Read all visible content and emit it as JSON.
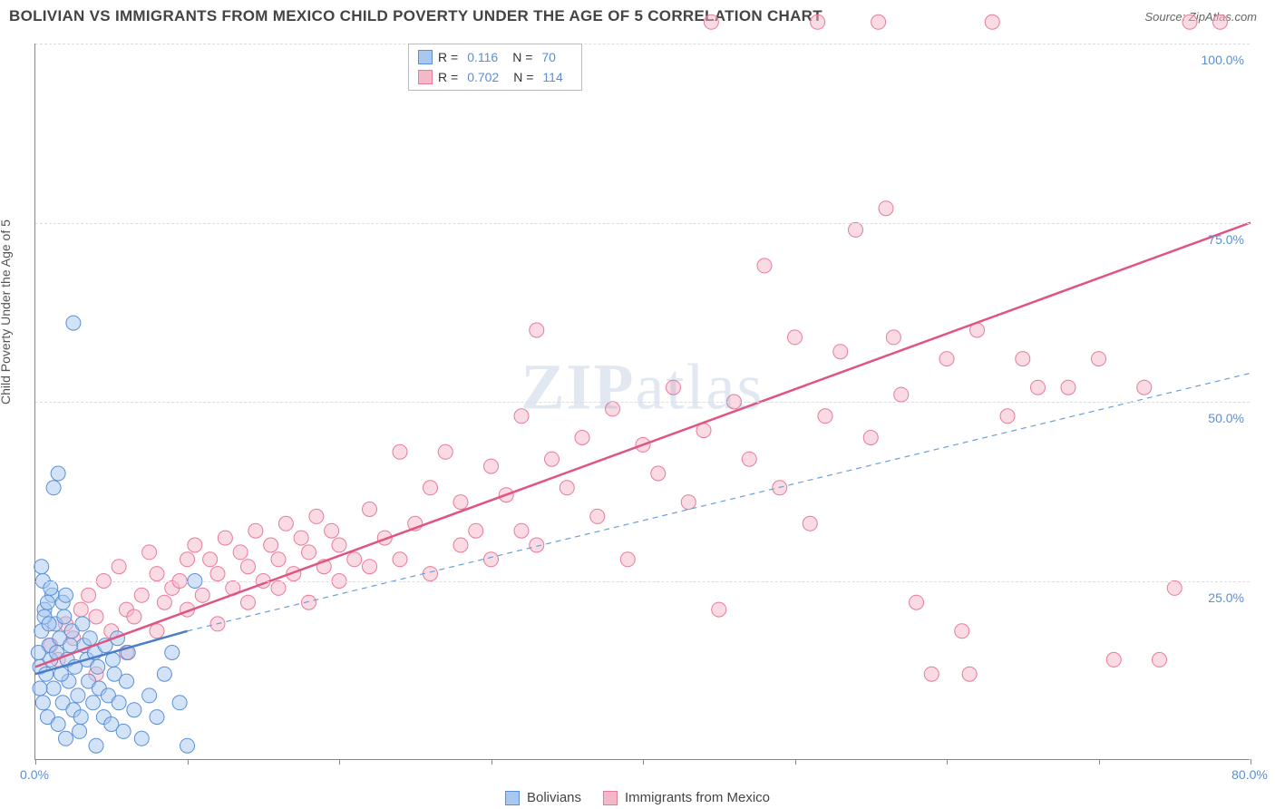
{
  "title": "BOLIVIAN VS IMMIGRANTS FROM MEXICO CHILD POVERTY UNDER THE AGE OF 5 CORRELATION CHART",
  "source": "Source: ZipAtlas.com",
  "ylabel": "Child Poverty Under the Age of 5",
  "watermark_bold": "ZIP",
  "watermark_rest": "atlas",
  "chart": {
    "type": "scatter",
    "background_color": "#ffffff",
    "grid_color": "#dddddd",
    "axis_color": "#888888",
    "tick_color": "#5a8fd8",
    "xlim": [
      0,
      80
    ],
    "ylim": [
      0,
      100
    ],
    "xticks": [
      0,
      10,
      20,
      30,
      40,
      50,
      60,
      70,
      80
    ],
    "xtick_labels": {
      "0": "0.0%",
      "80": "80.0%"
    },
    "yticks": [
      25,
      50,
      75,
      100
    ],
    "ytick_labels": [
      "25.0%",
      "50.0%",
      "75.0%",
      "100.0%"
    ],
    "marker_radius": 8,
    "marker_opacity": 0.5,
    "font_size_tick": 14,
    "font_size_title": 17
  },
  "series": {
    "bolivians": {
      "label": "Bolivians",
      "fill_color": "#a8c8f0",
      "stroke_color": "#5a8fd8",
      "R": "0.116",
      "N": "70",
      "trend": {
        "x1": 0,
        "y1": 12,
        "x2": 10,
        "y2": 18,
        "color": "#4a7fc8",
        "width": 2.5,
        "dash": "none"
      },
      "trend_ext": {
        "x1": 10,
        "y1": 18,
        "x2": 80,
        "y2": 54,
        "color": "#6a9fd8",
        "width": 1.2,
        "dash": "6,5"
      },
      "points": [
        [
          0.3,
          13
        ],
        [
          0.5,
          8
        ],
        [
          0.4,
          18
        ],
        [
          0.8,
          6
        ],
        [
          1.0,
          14
        ],
        [
          0.6,
          21
        ],
        [
          1.2,
          10
        ],
        [
          0.9,
          16
        ],
        [
          1.5,
          5
        ],
        [
          1.3,
          19
        ],
        [
          0.7,
          12
        ],
        [
          1.1,
          23
        ],
        [
          1.8,
          8
        ],
        [
          1.4,
          15
        ],
        [
          2.0,
          3
        ],
        [
          1.6,
          17
        ],
        [
          0.5,
          25
        ],
        [
          2.2,
          11
        ],
        [
          1.9,
          20
        ],
        [
          2.5,
          7
        ],
        [
          2.1,
          14
        ],
        [
          2.8,
          9
        ],
        [
          2.4,
          18
        ],
        [
          3.0,
          6
        ],
        [
          2.6,
          13
        ],
        [
          3.2,
          16
        ],
        [
          2.9,
          4
        ],
        [
          3.5,
          11
        ],
        [
          3.1,
          19
        ],
        [
          3.8,
          8
        ],
        [
          3.4,
          14
        ],
        [
          4.0,
          2
        ],
        [
          3.6,
          17
        ],
        [
          4.2,
          10
        ],
        [
          3.9,
          15
        ],
        [
          4.5,
          6
        ],
        [
          4.1,
          13
        ],
        [
          4.8,
          9
        ],
        [
          0.4,
          27
        ],
        [
          5.0,
          5
        ],
        [
          4.6,
          16
        ],
        [
          5.2,
          12
        ],
        [
          0.8,
          22
        ],
        [
          5.5,
          8
        ],
        [
          5.1,
          14
        ],
        [
          5.8,
          4
        ],
        [
          5.4,
          17
        ],
        [
          6.0,
          11
        ],
        [
          1.2,
          38
        ],
        [
          6.5,
          7
        ],
        [
          6.1,
          15
        ],
        [
          0.6,
          20
        ],
        [
          1.5,
          40
        ],
        [
          7.0,
          3
        ],
        [
          1.0,
          24
        ],
        [
          7.5,
          9
        ],
        [
          2.5,
          61
        ],
        [
          8.0,
          6
        ],
        [
          1.8,
          22
        ],
        [
          8.5,
          12
        ],
        [
          2.0,
          23
        ],
        [
          9.0,
          15
        ],
        [
          9.5,
          8
        ],
        [
          10.0,
          2
        ],
        [
          10.5,
          25
        ],
        [
          0.2,
          15
        ],
        [
          0.3,
          10
        ],
        [
          0.9,
          19
        ],
        [
          1.7,
          12
        ],
        [
          2.3,
          16
        ]
      ]
    },
    "mexico": {
      "label": "Immigrants from Mexico",
      "fill_color": "#f5b8c8",
      "stroke_color": "#e87a9a",
      "R": "0.702",
      "N": "114",
      "trend": {
        "x1": 0,
        "y1": 13,
        "x2": 80,
        "y2": 75,
        "color": "#e05580",
        "width": 2.5,
        "dash": "none"
      },
      "points": [
        [
          1,
          16
        ],
        [
          2,
          19
        ],
        [
          1.5,
          14
        ],
        [
          3,
          21
        ],
        [
          2.5,
          17
        ],
        [
          4,
          20
        ],
        [
          3.5,
          23
        ],
        [
          5,
          18
        ],
        [
          4.5,
          25
        ],
        [
          6,
          21
        ],
        [
          5.5,
          27
        ],
        [
          7,
          23
        ],
        [
          6.5,
          20
        ],
        [
          8,
          26
        ],
        [
          7.5,
          29
        ],
        [
          9,
          24
        ],
        [
          8.5,
          22
        ],
        [
          10,
          28
        ],
        [
          9.5,
          25
        ],
        [
          11,
          23
        ],
        [
          10.5,
          30
        ],
        [
          12,
          26
        ],
        [
          11.5,
          28
        ],
        [
          13,
          24
        ],
        [
          12.5,
          31
        ],
        [
          14,
          27
        ],
        [
          13.5,
          29
        ],
        [
          15,
          25
        ],
        [
          14.5,
          32
        ],
        [
          16,
          28
        ],
        [
          15.5,
          30
        ],
        [
          17,
          26
        ],
        [
          16.5,
          33
        ],
        [
          18,
          29
        ],
        [
          17.5,
          31
        ],
        [
          19,
          27
        ],
        [
          18.5,
          34
        ],
        [
          20,
          30
        ],
        [
          19.5,
          32
        ],
        [
          21,
          28
        ],
        [
          22,
          35
        ],
        [
          23,
          31
        ],
        [
          24,
          43
        ],
        [
          25,
          33
        ],
        [
          26,
          38
        ],
        [
          27,
          43
        ],
        [
          28,
          36
        ],
        [
          29,
          32
        ],
        [
          30,
          41
        ],
        [
          31,
          37
        ],
        [
          32,
          48
        ],
        [
          33,
          30
        ],
        [
          34,
          42
        ],
        [
          35,
          38
        ],
        [
          36,
          45
        ],
        [
          37,
          34
        ],
        [
          38,
          49
        ],
        [
          39,
          28
        ],
        [
          40,
          44
        ],
        [
          41,
          40
        ],
        [
          42,
          52
        ],
        [
          43,
          36
        ],
        [
          44,
          46
        ],
        [
          45,
          21
        ],
        [
          46,
          50
        ],
        [
          47,
          42
        ],
        [
          48,
          69
        ],
        [
          49,
          38
        ],
        [
          50,
          59
        ],
        [
          51,
          33
        ],
        [
          52,
          48
        ],
        [
          53,
          57
        ],
        [
          54,
          74
        ],
        [
          55,
          45
        ],
        [
          56,
          77
        ],
        [
          57,
          51
        ],
        [
          56.5,
          59
        ],
        [
          58,
          22
        ],
        [
          51.5,
          103
        ],
        [
          60,
          56
        ],
        [
          61,
          18
        ],
        [
          62,
          60
        ],
        [
          55.5,
          103
        ],
        [
          64,
          48
        ],
        [
          65,
          56
        ],
        [
          66,
          52
        ],
        [
          59,
          12
        ],
        [
          61.5,
          12
        ],
        [
          63,
          103
        ],
        [
          70,
          56
        ],
        [
          71,
          14
        ],
        [
          68,
          52
        ],
        [
          73,
          52
        ],
        [
          74,
          14
        ],
        [
          75,
          24
        ],
        [
          76,
          103
        ],
        [
          78,
          103
        ],
        [
          4,
          12
        ],
        [
          6,
          15
        ],
        [
          8,
          18
        ],
        [
          10,
          21
        ],
        [
          12,
          19
        ],
        [
          14,
          22
        ],
        [
          16,
          24
        ],
        [
          18,
          22
        ],
        [
          20,
          25
        ],
        [
          22,
          27
        ],
        [
          24,
          28
        ],
        [
          26,
          26
        ],
        [
          28,
          30
        ],
        [
          30,
          28
        ],
        [
          32,
          32
        ],
        [
          33,
          60
        ],
        [
          44.5,
          103
        ]
      ]
    }
  },
  "legend_top": {
    "r_key": "R  =",
    "n_key": "N  ="
  }
}
